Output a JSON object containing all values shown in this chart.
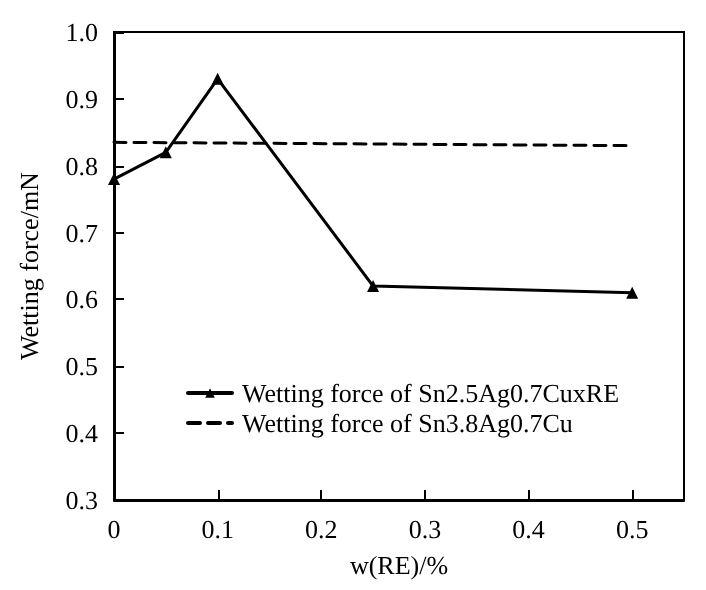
{
  "chart_data": {
    "type": "line",
    "xlabel": "w(RE)/%",
    "ylabel": "Wetting force/mN",
    "xlim": [
      0,
      0.55
    ],
    "xticks": [
      0,
      0.1,
      0.2,
      0.3,
      0.4,
      0.5
    ],
    "ylim": [
      0.3,
      1.0
    ],
    "yticks": [
      0.3,
      0.4,
      0.5,
      0.6,
      0.7,
      0.8,
      0.9,
      {
        "value": 1.0,
        "label": "1.0"
      }
    ],
    "series": [
      {
        "name": "Wetting force of Sn2.5Ag0.7CuxRE",
        "color": "#000000",
        "x": [
          0,
          0.05,
          0.1,
          0.25,
          0.5
        ],
        "values": [
          0.78,
          0.82,
          0.93,
          0.62,
          0.61
        ],
        "marker": "triangle",
        "line_style": "solid"
      },
      {
        "name": "Wetting force of Sn3.8Ag0.7Cu",
        "color": "#000000",
        "x": [
          0,
          0.5
        ],
        "values": [
          0.835,
          0.83
        ],
        "marker": "none",
        "line_style": "dashed"
      }
    ],
    "legend": "bottom",
    "grid": false
  }
}
